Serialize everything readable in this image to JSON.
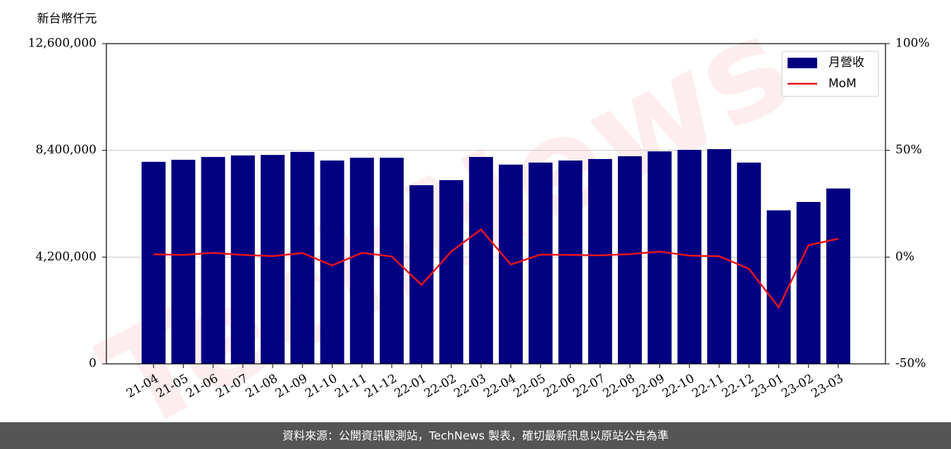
{
  "chart_data": {
    "type": "bar",
    "y_label": "新台幣仟元",
    "watermark": "TechNews",
    "footer": "資料來源：公開資訊觀測站，TechNews 製表，確切最新訊息以原站公告為準",
    "categories": [
      "21-04",
      "21-05",
      "21-06",
      "21-07",
      "21-08",
      "21-09",
      "21-10",
      "21-11",
      "21-12",
      "22-01",
      "22-02",
      "22-03",
      "22-04",
      "22-05",
      "22-06",
      "22-07",
      "22-08",
      "22-09",
      "22-10",
      "22-11",
      "22-12",
      "23-01",
      "23-02",
      "23-03"
    ],
    "series": [
      {
        "name": "月營收",
        "type": "bar",
        "color": "#000080",
        "values": [
          7950000,
          8030000,
          8140000,
          8200000,
          8220000,
          8340000,
          8000000,
          8110000,
          8110000,
          7030000,
          7230000,
          8140000,
          7840000,
          7920000,
          8000000,
          8060000,
          8170000,
          8360000,
          8420000,
          8450000,
          7920000,
          6040000,
          6370000,
          6900000
        ]
      },
      {
        "name": "MoM",
        "type": "line",
        "axis": "y2",
        "color": "#e8141c",
        "values": [
          1.3,
          1.0,
          2.0,
          1.0,
          0.5,
          1.9,
          -3.9,
          2.0,
          0.3,
          -13.0,
          2.6,
          13.0,
          -3.5,
          1.2,
          1.0,
          0.8,
          1.4,
          2.6,
          0.7,
          0.4,
          -5.5,
          -23.5,
          5.6,
          8.6
        ]
      }
    ],
    "ylim": [
      0,
      12600000
    ],
    "yticks": [
      0,
      {
        "value": 4200000,
        "label": "4,200,000"
      },
      {
        "value": 8400000,
        "label": "8,400,000"
      },
      {
        "value": 12600000,
        "label": "12,600,000"
      }
    ],
    "y2lim": [
      -50,
      100
    ],
    "y2ticks": [
      {
        "value": -50,
        "label": "-50%"
      },
      {
        "value": 0,
        "label": "0%"
      },
      {
        "value": 50,
        "label": "50%"
      },
      {
        "value": 100,
        "label": "100%"
      }
    ],
    "grid": true,
    "legend": "upper right"
  }
}
